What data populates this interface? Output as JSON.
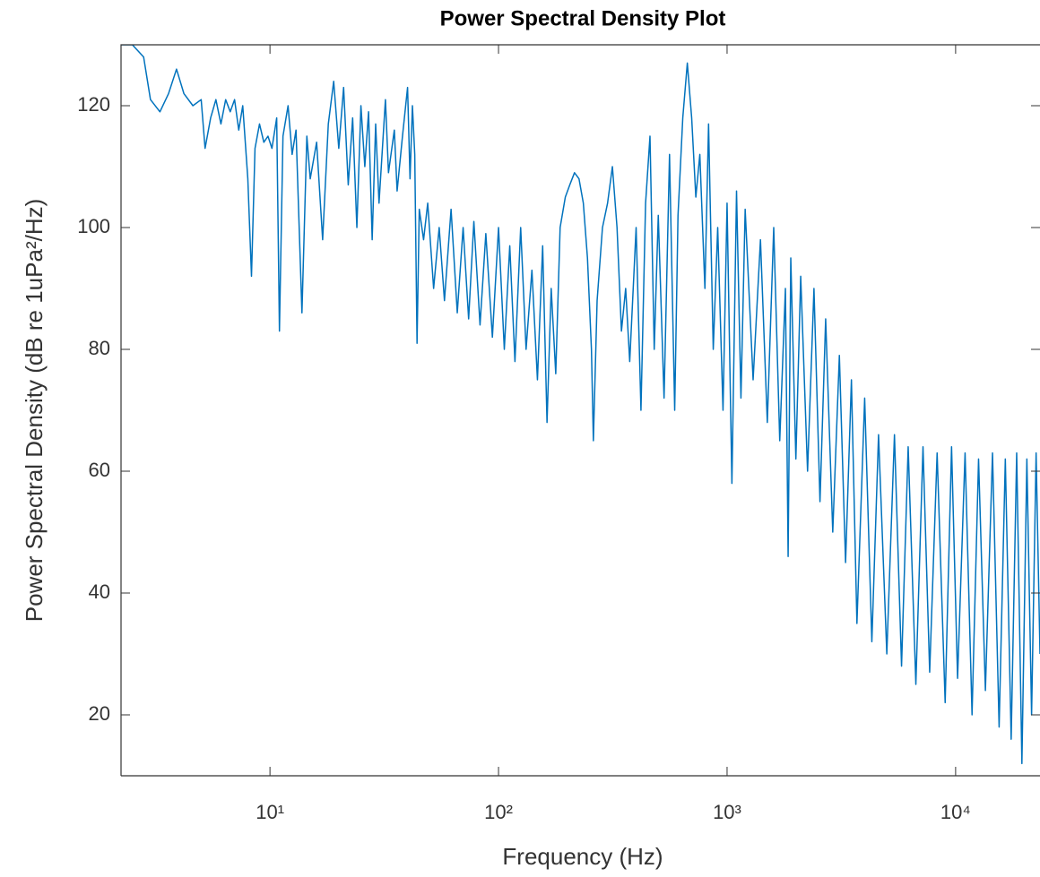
{
  "chart_data": {
    "type": "line",
    "title": "Power Spectral Density Plot",
    "x_label": "Frequency (Hz)",
    "y_label": "Power Spectral Density (dB re 1uPa²/Hz)",
    "xscale": "log",
    "color": "#0072bd",
    "xlim": [
      2.23,
      23400
    ],
    "ylim": [
      10,
      130
    ],
    "xticks": [
      {
        "value": 10,
        "label": "10¹"
      },
      {
        "value": 100,
        "label": "10²"
      },
      {
        "value": 1000,
        "label": "10³"
      },
      {
        "value": 10000,
        "label": "10⁴"
      }
    ],
    "yticks": [
      20,
      40,
      60,
      80,
      100,
      120
    ],
    "x": [
      2.23,
      2.5,
      2.8,
      3.0,
      3.3,
      3.6,
      3.9,
      4.2,
      4.6,
      5.0,
      5.2,
      5.5,
      5.8,
      6.1,
      6.4,
      6.7,
      7.0,
      7.3,
      7.6,
      8.0,
      8.3,
      8.6,
      9.0,
      9.4,
      9.8,
      10.2,
      10.7,
      11.0,
      11.4,
      12.0,
      12.5,
      13.0,
      13.8,
      14.5,
      15,
      16,
      17,
      18,
      19,
      20,
      21,
      22,
      23,
      24,
      25,
      26,
      27,
      28,
      29,
      30,
      32,
      33,
      35,
      36,
      38,
      40,
      41,
      42,
      43,
      44,
      45,
      47,
      49,
      52,
      55,
      58,
      62,
      66,
      70,
      74,
      78,
      83,
      88,
      94,
      100,
      106,
      112,
      118,
      125,
      132,
      140,
      148,
      156,
      163,
      170,
      178,
      186,
      196,
      205,
      215,
      225,
      235,
      245,
      255,
      260,
      270,
      285,
      300,
      315,
      330,
      345,
      360,
      375,
      400,
      420,
      440,
      460,
      480,
      500,
      530,
      560,
      590,
      610,
      640,
      670,
      700,
      730,
      760,
      800,
      830,
      870,
      910,
      960,
      1000,
      1050,
      1100,
      1150,
      1200,
      1300,
      1400,
      1500,
      1600,
      1700,
      1800,
      1850,
      1900,
      2000,
      2100,
      2250,
      2400,
      2550,
      2700,
      2900,
      3100,
      3300,
      3500,
      3700,
      4000,
      4300,
      4600,
      5000,
      5400,
      5800,
      6200,
      6700,
      7200,
      7700,
      8300,
      9000,
      9600,
      10200,
      11000,
      11800,
      12600,
      13500,
      14500,
      15500,
      16500,
      17500,
      18500,
      19500,
      20500,
      21500,
      22500,
      23400
    ],
    "values": [
      130,
      130,
      128,
      121,
      119,
      122,
      126,
      122,
      120,
      121,
      113,
      118,
      121,
      117,
      121,
      119,
      121,
      116,
      120,
      108,
      92,
      113,
      117,
      114,
      115,
      113,
      118,
      83,
      115,
      120,
      112,
      116,
      86,
      115,
      108,
      114,
      98,
      117,
      124,
      113,
      123,
      107,
      118,
      100,
      120,
      110,
      119,
      98,
      117,
      104,
      121,
      109,
      116,
      106,
      115,
      123,
      108,
      120,
      112,
      81,
      103,
      98,
      104,
      90,
      100,
      88,
      103,
      86,
      100,
      85,
      101,
      84,
      99,
      82,
      100,
      80,
      97,
      78,
      100,
      80,
      93,
      75,
      97,
      68,
      90,
      76,
      100,
      105,
      107,
      109,
      108,
      104,
      95,
      80,
      65,
      88,
      100,
      104,
      110,
      100,
      83,
      90,
      78,
      100,
      70,
      104,
      115,
      80,
      102,
      72,
      112,
      70,
      102,
      118,
      127,
      118,
      105,
      112,
      90,
      117,
      80,
      100,
      70,
      104,
      58,
      106,
      72,
      103,
      75,
      98,
      68,
      100,
      65,
      90,
      46,
      95,
      62,
      92,
      60,
      90,
      55,
      85,
      50,
      79,
      45,
      75,
      35,
      72,
      32,
      66,
      30,
      66,
      28,
      64,
      25,
      64,
      27,
      63,
      22,
      64,
      26,
      63,
      20,
      62,
      24,
      63,
      18,
      62,
      16,
      63,
      12,
      62,
      20,
      63,
      30
    ]
  }
}
